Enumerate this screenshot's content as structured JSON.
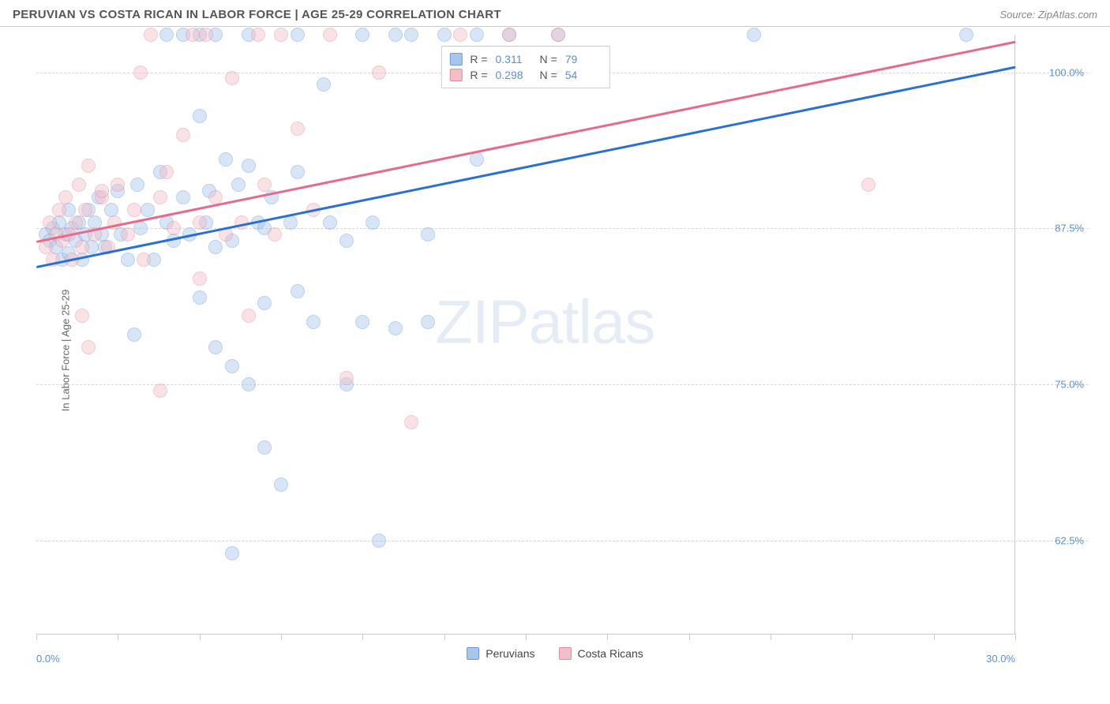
{
  "header": {
    "title": "PERUVIAN VS COSTA RICAN IN LABOR FORCE | AGE 25-29 CORRELATION CHART",
    "source": "Source: ZipAtlas.com"
  },
  "watermark": "ZIPatlas",
  "chart": {
    "type": "scatter",
    "ylabel": "In Labor Force | Age 25-29",
    "xlim": [
      0.0,
      30.0
    ],
    "ylim": [
      55.0,
      103.0
    ],
    "x_ticks": [
      0.0,
      2.5,
      5.0,
      7.5,
      10.0,
      12.5,
      15.0,
      17.5,
      20.0,
      22.5,
      25.0,
      27.5,
      30.0
    ],
    "x_tick_labels": {
      "min": "0.0%",
      "max": "30.0%"
    },
    "y_gridlines": [
      62.5,
      75.0,
      87.5,
      100.0
    ],
    "y_tick_labels": [
      "62.5%",
      "75.0%",
      "87.5%",
      "100.0%"
    ],
    "background_color": "#ffffff",
    "grid_color": "#d8d8d8",
    "axis_color": "#cccccc",
    "tick_label_color": "#5b8fd6",
    "marker_radius": 9,
    "marker_opacity": 0.45,
    "line_width": 3,
    "series": [
      {
        "name": "Peruvians",
        "fill_color": "#a8c6ec",
        "stroke_color": "#6a9bd8",
        "line_color": "#2a6fd6",
        "r": 0.311,
        "n": 79,
        "trend": {
          "x0": 0.0,
          "y0": 84.5,
          "x1": 30.0,
          "y1": 100.5
        },
        "points": [
          [
            0.3,
            87.0
          ],
          [
            0.4,
            86.5
          ],
          [
            0.5,
            87.5
          ],
          [
            0.6,
            86.0
          ],
          [
            0.7,
            88.0
          ],
          [
            0.8,
            85.0
          ],
          [
            0.9,
            87.0
          ],
          [
            1.0,
            89.0
          ],
          [
            1.0,
            85.5
          ],
          [
            1.1,
            87.5
          ],
          [
            1.2,
            86.5
          ],
          [
            1.3,
            88.0
          ],
          [
            1.4,
            85.0
          ],
          [
            1.5,
            87.0
          ],
          [
            1.6,
            89.0
          ],
          [
            1.7,
            86.0
          ],
          [
            1.8,
            88.0
          ],
          [
            1.9,
            90.0
          ],
          [
            2.0,
            87.0
          ],
          [
            2.1,
            86.0
          ],
          [
            2.3,
            89.0
          ],
          [
            2.5,
            90.5
          ],
          [
            2.6,
            87.0
          ],
          [
            2.8,
            85.0
          ],
          [
            3.0,
            79.0
          ],
          [
            3.1,
            91.0
          ],
          [
            3.2,
            87.5
          ],
          [
            3.4,
            89.0
          ],
          [
            3.6,
            85.0
          ],
          [
            3.8,
            92.0
          ],
          [
            4.0,
            88.0
          ],
          [
            4.0,
            103.0
          ],
          [
            4.2,
            86.5
          ],
          [
            4.5,
            90.0
          ],
          [
            4.5,
            103.0
          ],
          [
            4.7,
            87.0
          ],
          [
            5.0,
            103.0
          ],
          [
            5.0,
            96.5
          ],
          [
            5.0,
            82.0
          ],
          [
            5.2,
            88.0
          ],
          [
            5.3,
            90.5
          ],
          [
            5.5,
            86.0
          ],
          [
            5.5,
            103.0
          ],
          [
            5.5,
            78.0
          ],
          [
            5.8,
            93.0
          ],
          [
            6.0,
            86.5
          ],
          [
            6.0,
            76.5
          ],
          [
            6.0,
            61.5
          ],
          [
            6.2,
            91.0
          ],
          [
            6.5,
            92.5
          ],
          [
            6.5,
            75.0
          ],
          [
            6.5,
            103.0
          ],
          [
            6.8,
            88.0
          ],
          [
            7.0,
            81.5
          ],
          [
            7.0,
            87.5
          ],
          [
            7.0,
            70.0
          ],
          [
            7.2,
            90.0
          ],
          [
            7.5,
            67.0
          ],
          [
            7.8,
            88.0
          ],
          [
            8.0,
            92.0
          ],
          [
            8.0,
            82.5
          ],
          [
            8.0,
            103.0
          ],
          [
            8.5,
            80.0
          ],
          [
            8.8,
            99.0
          ],
          [
            9.0,
            88.0
          ],
          [
            9.5,
            86.5
          ],
          [
            9.5,
            75.0
          ],
          [
            10.0,
            103.0
          ],
          [
            10.0,
            80.0
          ],
          [
            10.3,
            88.0
          ],
          [
            10.5,
            62.5
          ],
          [
            11.0,
            103.0
          ],
          [
            11.0,
            79.5
          ],
          [
            11.5,
            103.0
          ],
          [
            12.0,
            87.0
          ],
          [
            12.0,
            80.0
          ],
          [
            12.5,
            103.0
          ],
          [
            13.5,
            93.0
          ],
          [
            13.5,
            103.0
          ],
          [
            14.5,
            103.0
          ],
          [
            16.0,
            103.0
          ],
          [
            22.0,
            103.0
          ],
          [
            28.5,
            103.0
          ]
        ]
      },
      {
        "name": "Costa Ricans",
        "fill_color": "#f2bfc9",
        "stroke_color": "#e48aa0",
        "line_color": "#e76a8a",
        "r": 0.298,
        "n": 54,
        "trend": {
          "x0": 0.0,
          "y0": 86.5,
          "x1": 30.0,
          "y1": 102.5
        },
        "points": [
          [
            0.3,
            86.0
          ],
          [
            0.4,
            88.0
          ],
          [
            0.5,
            85.0
          ],
          [
            0.6,
            87.0
          ],
          [
            0.7,
            89.0
          ],
          [
            0.8,
            86.5
          ],
          [
            0.9,
            90.0
          ],
          [
            1.0,
            87.0
          ],
          [
            1.1,
            85.0
          ],
          [
            1.2,
            88.0
          ],
          [
            1.3,
            91.0
          ],
          [
            1.4,
            86.0
          ],
          [
            1.4,
            80.5
          ],
          [
            1.5,
            89.0
          ],
          [
            1.6,
            92.5
          ],
          [
            1.6,
            78.0
          ],
          [
            1.8,
            87.0
          ],
          [
            2.0,
            90.0
          ],
          [
            2.0,
            90.5
          ],
          [
            2.2,
            86.0
          ],
          [
            2.4,
            88.0
          ],
          [
            2.5,
            91.0
          ],
          [
            2.8,
            87.0
          ],
          [
            3.0,
            89.0
          ],
          [
            3.2,
            100.0
          ],
          [
            3.3,
            85.0
          ],
          [
            3.5,
            103.0
          ],
          [
            3.8,
            90.0
          ],
          [
            3.8,
            74.5
          ],
          [
            4.0,
            92.0
          ],
          [
            4.2,
            87.5
          ],
          [
            4.5,
            95.0
          ],
          [
            4.8,
            103.0
          ],
          [
            5.0,
            88.0
          ],
          [
            5.0,
            83.5
          ],
          [
            5.2,
            103.0
          ],
          [
            5.5,
            90.0
          ],
          [
            5.8,
            87.0
          ],
          [
            6.0,
            99.5
          ],
          [
            6.3,
            88.0
          ],
          [
            6.5,
            80.5
          ],
          [
            6.8,
            103.0
          ],
          [
            7.0,
            91.0
          ],
          [
            7.3,
            87.0
          ],
          [
            7.5,
            103.0
          ],
          [
            8.0,
            95.5
          ],
          [
            8.5,
            89.0
          ],
          [
            9.0,
            103.0
          ],
          [
            9.5,
            75.5
          ],
          [
            10.5,
            100.0
          ],
          [
            11.5,
            72.0
          ],
          [
            13.0,
            103.0
          ],
          [
            14.5,
            103.0
          ],
          [
            16.0,
            103.0
          ],
          [
            25.5,
            91.0
          ]
        ]
      }
    ],
    "legend": {
      "items": [
        "Peruvians",
        "Costa Ricans"
      ]
    }
  }
}
